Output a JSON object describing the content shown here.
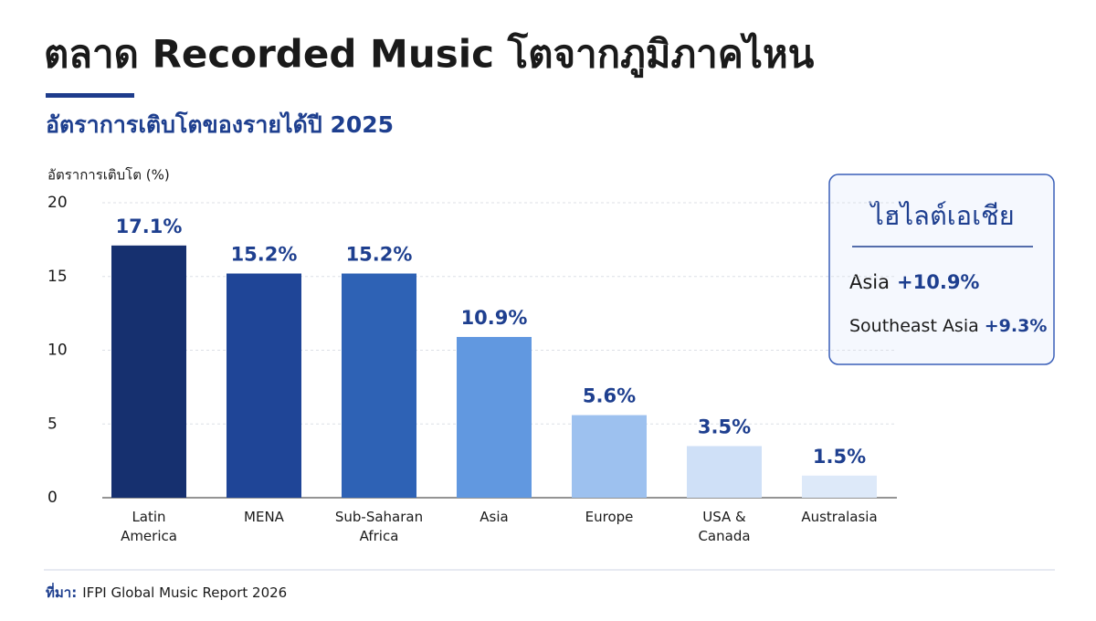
{
  "chart_data": {
    "type": "bar",
    "title": "ตลาด Recorded Music โตจากภูมิภาคไหน",
    "subtitle": "อัตราการเติบโตของรายได้ปี 2025",
    "y_label": "อัตราการเติบโต (%)",
    "categories": [
      "Latin\nAmerica",
      "MENA",
      "Sub-Saharan\nAfrica",
      "Asia",
      "Europe",
      "USA &\nCanada",
      "Australasia"
    ],
    "values": [
      17.1,
      15.2,
      15.2,
      10.9,
      5.6,
      3.5,
      1.5
    ],
    "value_labels": [
      "17.1%",
      "15.2%",
      "15.2%",
      "10.9%",
      "5.6%",
      "3.5%",
      "1.5%"
    ],
    "colors": [
      "#16306f",
      "#1f4597",
      "#2e62b5",
      "#6198e0",
      "#9dc1ef",
      "#cfe0f7",
      "#dde9f9"
    ],
    "ylim": [
      0,
      20
    ],
    "yticks": [
      0,
      5,
      10,
      15,
      20
    ],
    "grid": true,
    "highlight": {
      "title": "ไฮไลต์เอเชีย",
      "items": [
        {
          "label": "Asia",
          "value": "+10.9%"
        },
        {
          "label": "Southeast Asia",
          "value": "+9.3%"
        }
      ]
    },
    "source": {
      "label": "ที่มา:",
      "text": "IFPI Global Music Report 2026"
    }
  }
}
